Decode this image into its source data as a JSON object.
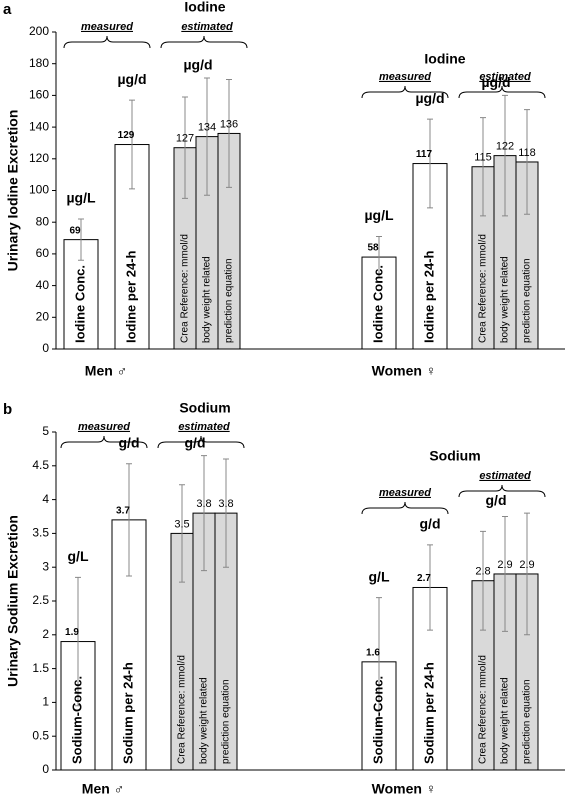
{
  "chart_data": [
    {
      "type": "bar",
      "panel": "a",
      "y_label": "Urinary Iodine Excretion",
      "ylim": [
        0,
        200
      ],
      "yticks": [
        0,
        20,
        40,
        60,
        80,
        100,
        120,
        140,
        160,
        180,
        200
      ],
      "colors": [
        "#ffffff",
        "#ffffff",
        "#d9d9d9",
        "#d9d9d9",
        "#d9d9d9"
      ],
      "groups": [
        {
          "name": "Men ♂",
          "title": "Iodine",
          "measured": "measured",
          "estimated": "estimated",
          "units": [
            "µg/L",
            "µg/d",
            "µg/d"
          ],
          "bar_labels": [
            "Iodine Conc.",
            "Iodine per 24-h",
            "Crea Reference: mmol/d",
            "body weight related",
            "prediction equation"
          ],
          "values": [
            69,
            129,
            127,
            134,
            136
          ],
          "errors": [
            13,
            28,
            32,
            37,
            34
          ]
        },
        {
          "name": "Women ♀",
          "title": "Iodine",
          "measured": "measured",
          "estimated": "estimated",
          "units": [
            "µg/L",
            "µg/d",
            "µg/d"
          ],
          "bar_labels": [
            "Iodine Conc.",
            "Iodine per 24-h",
            "Crea Reference: mmol/d",
            "body weight related",
            "prediction equation"
          ],
          "values": [
            58,
            117,
            115,
            122,
            118
          ],
          "errors": [
            13,
            28,
            31,
            38,
            33
          ]
        }
      ]
    },
    {
      "type": "bar",
      "panel": "b",
      "y_label": "Urinary Sodium Excretion",
      "ylim": [
        0,
        5
      ],
      "yticks": [
        0,
        0.5,
        1,
        1.5,
        2,
        2.5,
        3,
        3.5,
        4,
        4.5,
        5
      ],
      "colors": [
        "#ffffff",
        "#ffffff",
        "#d9d9d9",
        "#d9d9d9",
        "#d9d9d9"
      ],
      "groups": [
        {
          "name": "Men ♂",
          "title": "Sodium",
          "measured": "measured",
          "estimated": "estimated",
          "units": [
            "g/L",
            "g/d",
            "g/d"
          ],
          "bar_labels": [
            "Sodium-Conc.",
            "Sodium per 24-h",
            "Crea Reference: mmol/d",
            "body weight related",
            "prediction equation"
          ],
          "values": [
            1.9,
            3.7,
            3.5,
            3.8,
            3.8
          ],
          "errors": [
            0.95,
            0.83,
            0.72,
            0.85,
            0.8
          ]
        },
        {
          "name": "Women ♀",
          "title": "Sodium",
          "measured": "measured",
          "estimated": "estimated",
          "units": [
            "g/L",
            "g/d",
            "g/d"
          ],
          "bar_labels": [
            "Sodium-Conc.",
            "Sodium per 24-h",
            "Crea Reference: mmol/d",
            "body weight related",
            "prediction equation"
          ],
          "values": [
            1.6,
            2.7,
            2.8,
            2.9,
            2.9
          ],
          "errors": [
            0.95,
            0.63,
            0.73,
            0.85,
            0.9
          ]
        }
      ]
    }
  ]
}
